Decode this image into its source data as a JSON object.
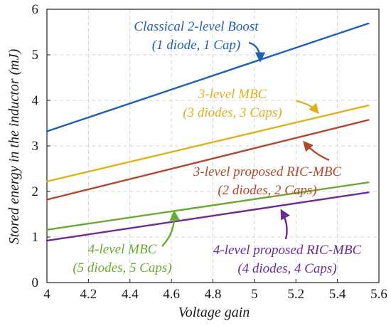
{
  "chart_data": {
    "type": "line",
    "title": "",
    "xlabel": "Voltage gain",
    "ylabel": "Stored energy in the inductor (mJ)",
    "xlim": [
      4,
      5.6
    ],
    "ylim": [
      0,
      6
    ],
    "x_ticks": [
      "4",
      "4.2",
      "4.4",
      "4.6",
      "4.8",
      "5",
      "5.2",
      "5.4",
      "5.6"
    ],
    "y_ticks": [
      "0",
      "1",
      "2",
      "3",
      "4",
      "5",
      "6"
    ],
    "grid": true,
    "x": [
      4.0,
      5.55
    ],
    "series": [
      {
        "key": "boost",
        "name": "Classical 2-level Boost",
        "color": "#1f5fb4",
        "values": [
          3.32,
          5.69
        ]
      },
      {
        "key": "mbc3",
        "name": "3-level MBC",
        "color": "#e0b020",
        "values": [
          2.22,
          3.89
        ]
      },
      {
        "key": "ric3",
        "name": "3-level proposed RIC-MBC",
        "color": "#b5482a",
        "values": [
          1.82,
          3.57
        ]
      },
      {
        "key": "mbc4",
        "name": "4-level MBC",
        "color": "#6aaa2e",
        "values": [
          1.16,
          2.2
        ]
      },
      {
        "key": "ric4",
        "name": "4-level proposed RIC-MBC",
        "color": "#6a2a9a",
        "values": [
          0.92,
          1.98
        ]
      }
    ],
    "annotations": [
      {
        "series": "boost",
        "line1": "Classical 2-level Boost",
        "line2": "(1 diode, 1 Cap)"
      },
      {
        "series": "mbc3",
        "line1": "3-level MBC",
        "line2": "(3 diodes, 3 Caps)"
      },
      {
        "series": "ric3",
        "line1": "3-level proposed RIC-MBC",
        "line2": "(2 diodes, 2 Caps)"
      },
      {
        "series": "mbc4",
        "line1": "4-level MBC",
        "line2": "(5 diodes, 5 Caps)"
      },
      {
        "series": "ric4",
        "line1": "4-level proposed RIC-MBC",
        "line2": "(4 diodes, 4 Caps)"
      }
    ]
  }
}
